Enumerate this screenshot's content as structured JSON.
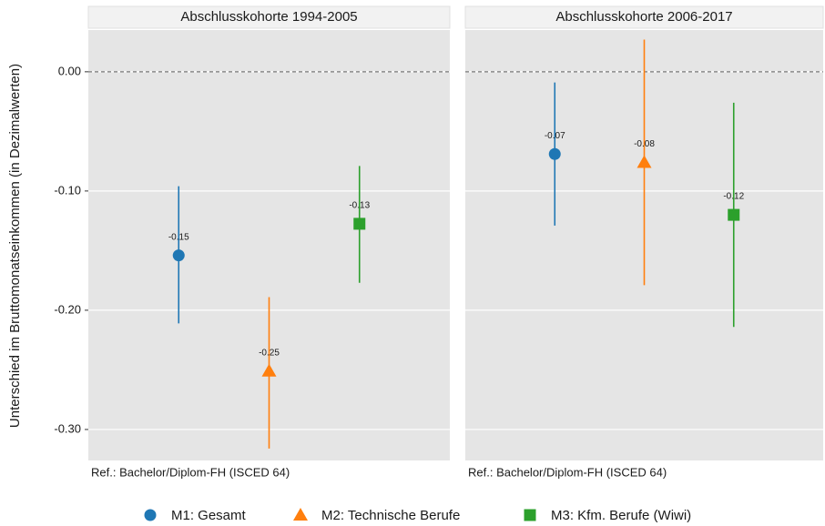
{
  "chart_data": {
    "type": "pointrange",
    "ylabel": "Unterschied im Bruttomonatseinkommen (in Dezimalwerten)",
    "facets": [
      "Abschlusskohorte 1994-2005",
      "Abschlusskohorte 2006-2017"
    ],
    "note": "Ref.: Bachelor/Diplom-FH (ISCED 64)",
    "ylim": [
      -0.326,
      0.035
    ],
    "yticks": [
      {
        "value": 0,
        "label": "0.00"
      },
      {
        "value": -0.1,
        "label": "-0.10"
      },
      {
        "value": -0.2,
        "label": "-0.20"
      },
      {
        "value": -0.3,
        "label": "-0.30"
      }
    ],
    "refline": 0,
    "grid": true,
    "legend": "bottom",
    "series": [
      {
        "name": "M1: Gesamt",
        "color": "#1f77b4",
        "marker": "circle",
        "values": [
          -0.154,
          -0.069
        ],
        "value_labels": [
          "-0.15",
          "-0.07"
        ],
        "lower": [
          -0.211,
          -0.129
        ],
        "upper": [
          -0.096,
          -0.009
        ]
      },
      {
        "name": "M2: Technische Berufe",
        "color": "#ff7f0e",
        "marker": "triangle",
        "values": [
          -0.251,
          -0.076
        ],
        "value_labels": [
          "-0.25",
          "-0.08"
        ],
        "lower": [
          -0.316,
          -0.179
        ],
        "upper": [
          -0.189,
          0.027
        ]
      },
      {
        "name": "M3: Kfm. Berufe (Wiwi)",
        "color": "#2ca02c",
        "marker": "square",
        "values": [
          -0.1275,
          -0.12
        ],
        "value_labels": [
          "-0.13",
          "-0.12"
        ],
        "lower": [
          -0.177,
          -0.214
        ],
        "upper": [
          -0.079,
          -0.026
        ]
      }
    ]
  }
}
